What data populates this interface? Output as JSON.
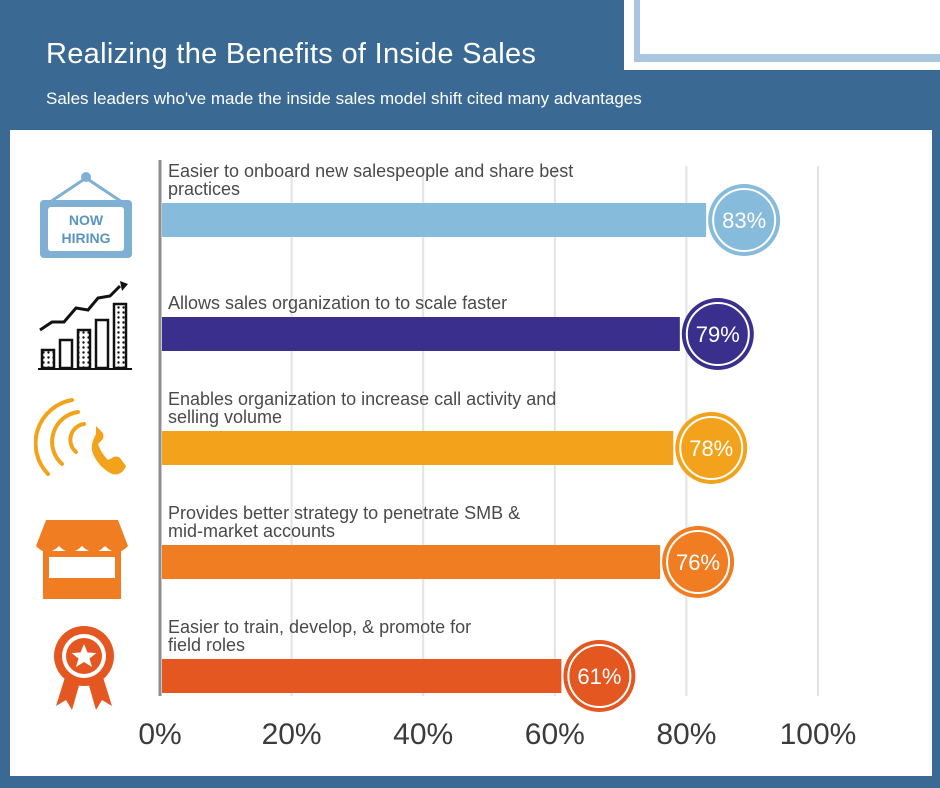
{
  "title": "Realizing the Benefits of Inside Sales",
  "subtitle": "Sales leaders who've made the inside sales model shift cited many advantages",
  "icons": {
    "hiring_line1": "NOW",
    "hiring_line2": "HIRING"
  },
  "colors": {
    "background": "#3a6a93",
    "bar1": "#86bbdc",
    "bar2": "#3a2f8c",
    "bar3": "#f3a21c",
    "bar4": "#f07d22",
    "bar5": "#e45720"
  },
  "chart_data": {
    "type": "bar",
    "orientation": "horizontal",
    "title": "Realizing the Benefits of Inside Sales",
    "subtitle": "Sales leaders who've made the inside sales model shift cited many advantages",
    "categories": [
      [
        "Easier to onboard new salespeople and share best",
        "practices"
      ],
      [
        "Allows sales organization to to scale faster"
      ],
      [
        "Enables organization to increase call activity and",
        "selling volume"
      ],
      [
        "Provides better strategy to penetrate SMB &",
        "mid-market accounts"
      ],
      [
        "Easier to train, develop, & promote for",
        "field roles"
      ]
    ],
    "values": [
      83,
      79,
      78,
      76,
      61
    ],
    "value_labels": [
      "83%",
      "79%",
      "78%",
      "76%",
      "61%"
    ],
    "bar_colors": [
      "#86bbdc",
      "#3a2f8c",
      "#f3a21c",
      "#f07d22",
      "#e45720"
    ],
    "icon_names": [
      "now-hiring-sign-icon",
      "growth-chart-icon",
      "phone-ringing-icon",
      "storefront-icon",
      "award-ribbon-icon"
    ],
    "xlim": [
      0,
      100
    ],
    "xticks": [
      0,
      20,
      40,
      60,
      80,
      100
    ],
    "xtick_labels": [
      "0%",
      "20%",
      "40%",
      "60%",
      "80%",
      "100%"
    ],
    "grid": true,
    "legend": "none"
  }
}
